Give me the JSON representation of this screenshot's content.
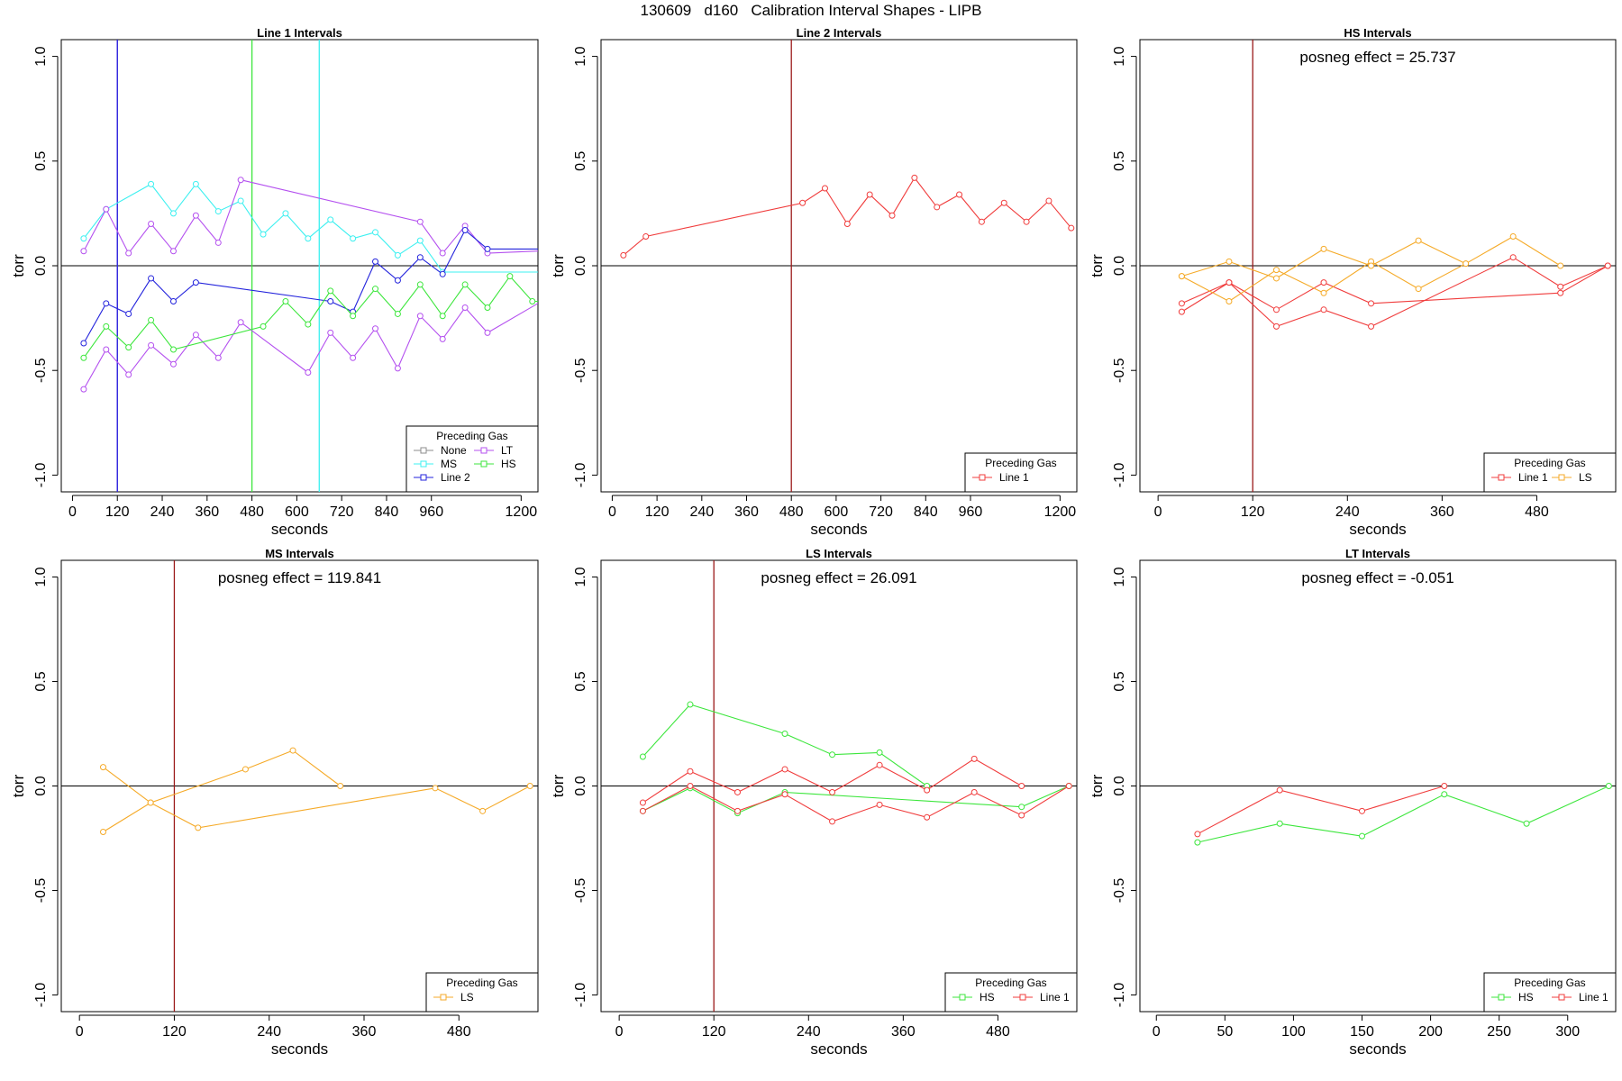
{
  "main_title": "130609   d160   Calibration Interval Shapes - LIPB",
  "colors": {
    "None": "#8c8c8c",
    "MS": "#3cf0f0",
    "Line 2": "#2323dc",
    "LT": "#b450ef",
    "HS": "#3ce63c",
    "Line 1": "#f03c3c",
    "LS": "#f5aa28",
    "zero": "#000000",
    "cal": "#9b1a1a"
  },
  "chart_data": [
    {
      "type": "line",
      "title": "Line 1 Intervals",
      "xlabel": "seconds",
      "ylabel": "torr",
      "xlim": [
        -30,
        1245
      ],
      "ylim": [
        -1.08,
        1.08
      ],
      "xticks": [
        0,
        120,
        240,
        360,
        480,
        600,
        720,
        840,
        960,
        1200
      ],
      "yticks": [
        -1.0,
        -0.5,
        0.0,
        0.5,
        1.0
      ],
      "vlines": [
        {
          "x": 120,
          "color": "#b450ef"
        },
        {
          "x": 120,
          "color": "#2323dc"
        },
        {
          "x": 480,
          "color": "#3ce63c"
        },
        {
          "x": 660,
          "color": "#3cf0f0"
        }
      ],
      "posneg": "",
      "legend": {
        "title": "Preceding Gas",
        "position": "bottom-right",
        "ncol": 2,
        "entries": [
          "None",
          "MS",
          "Line 2",
          "LT",
          "HS"
        ]
      },
      "series": [
        {
          "name": "MS",
          "points": [
            [
              30,
              0.13
            ],
            [
              90,
              0.27
            ],
            [
              210,
              0.39
            ],
            [
              270,
              0.25
            ],
            [
              330,
              0.39
            ],
            [
              390,
              0.26
            ],
            [
              450,
              0.31
            ],
            [
              510,
              0.15
            ],
            [
              570,
              0.25
            ],
            [
              630,
              0.13
            ],
            [
              690,
              0.22
            ],
            [
              750,
              0.13
            ],
            [
              810,
              0.16
            ],
            [
              870,
              0.05
            ],
            [
              930,
              0.12
            ],
            [
              990,
              -0.03
            ],
            [
              1245,
              -0.03
            ]
          ]
        },
        {
          "name": "LT",
          "points": [
            [
              30,
              0.07
            ],
            [
              90,
              0.27
            ],
            [
              150,
              0.06
            ],
            [
              210,
              0.2
            ],
            [
              270,
              0.07
            ],
            [
              330,
              0.24
            ],
            [
              390,
              0.11
            ],
            [
              450,
              0.41
            ],
            [
              930,
              0.21
            ],
            [
              990,
              0.06
            ],
            [
              1050,
              0.19
            ],
            [
              1110,
              0.06
            ],
            [
              1245,
              0.07
            ]
          ]
        },
        {
          "name": "LT",
          "points": [
            [
              30,
              -0.59
            ],
            [
              90,
              -0.4
            ],
            [
              150,
              -0.52
            ],
            [
              210,
              -0.38
            ],
            [
              270,
              -0.47
            ],
            [
              330,
              -0.33
            ],
            [
              390,
              -0.44
            ],
            [
              450,
              -0.27
            ],
            [
              630,
              -0.51
            ],
            [
              690,
              -0.32
            ],
            [
              750,
              -0.44
            ],
            [
              810,
              -0.3
            ],
            [
              870,
              -0.49
            ],
            [
              930,
              -0.24
            ],
            [
              990,
              -0.35
            ],
            [
              1050,
              -0.2
            ],
            [
              1110,
              -0.32
            ],
            [
              1245,
              -0.18
            ]
          ]
        },
        {
          "name": "Line 2",
          "points": [
            [
              30,
              -0.37
            ],
            [
              90,
              -0.18
            ],
            [
              150,
              -0.23
            ],
            [
              210,
              -0.06
            ],
            [
              270,
              -0.17
            ],
            [
              330,
              -0.08
            ],
            [
              690,
              -0.17
            ],
            [
              750,
              -0.22
            ],
            [
              810,
              0.02
            ],
            [
              870,
              -0.07
            ],
            [
              930,
              0.04
            ],
            [
              990,
              -0.04
            ],
            [
              1050,
              0.17
            ],
            [
              1110,
              0.08
            ],
            [
              1245,
              0.08
            ]
          ]
        },
        {
          "name": "HS",
          "points": [
            [
              30,
              -0.44
            ],
            [
              90,
              -0.29
            ],
            [
              150,
              -0.39
            ],
            [
              210,
              -0.26
            ],
            [
              270,
              -0.4
            ],
            [
              510,
              -0.29
            ],
            [
              570,
              -0.17
            ],
            [
              630,
              -0.28
            ],
            [
              690,
              -0.12
            ],
            [
              750,
              -0.24
            ],
            [
              810,
              -0.11
            ],
            [
              870,
              -0.23
            ],
            [
              930,
              -0.09
            ],
            [
              990,
              -0.24
            ],
            [
              1050,
              -0.09
            ],
            [
              1110,
              -0.2
            ],
            [
              1170,
              -0.05
            ],
            [
              1230,
              -0.17
            ],
            [
              1245,
              -0.17
            ]
          ]
        }
      ]
    },
    {
      "type": "line",
      "title": "Line 2 Intervals",
      "xlabel": "seconds",
      "ylabel": "torr",
      "xlim": [
        -30,
        1245
      ],
      "ylim": [
        -1.08,
        1.08
      ],
      "xticks": [
        0,
        120,
        240,
        360,
        480,
        600,
        720,
        840,
        960,
        1200
      ],
      "yticks": [
        -1.0,
        -0.5,
        0.0,
        0.5,
        1.0
      ],
      "vlines": [
        {
          "x": 480,
          "color": "#9b1a1a"
        }
      ],
      "posneg": "",
      "legend": {
        "title": "Preceding Gas",
        "position": "bottom-right",
        "ncol": 1,
        "entries": [
          "Line 1"
        ]
      },
      "series": [
        {
          "name": "Line 1",
          "points": [
            [
              30,
              0.05
            ],
            [
              90,
              0.14
            ],
            [
              510,
              0.3
            ],
            [
              570,
              0.37
            ],
            [
              630,
              0.2
            ],
            [
              690,
              0.34
            ],
            [
              750,
              0.24
            ],
            [
              810,
              0.42
            ],
            [
              870,
              0.28
            ],
            [
              930,
              0.34
            ],
            [
              990,
              0.21
            ],
            [
              1050,
              0.3
            ],
            [
              1110,
              0.21
            ],
            [
              1170,
              0.31
            ],
            [
              1230,
              0.18
            ]
          ]
        }
      ]
    },
    {
      "type": "line",
      "title": "HS Intervals",
      "xlabel": "seconds",
      "ylabel": "torr",
      "xlim": [
        -23,
        580
      ],
      "ylim": [
        -1.08,
        1.08
      ],
      "xticks": [
        0,
        120,
        240,
        360,
        480
      ],
      "yticks": [
        -1.0,
        -0.5,
        0.0,
        0.5,
        1.0
      ],
      "vlines": [
        {
          "x": 120,
          "color": "#9b1a1a"
        }
      ],
      "posneg": "posneg effect = 25.737",
      "legend": {
        "title": "Preceding Gas",
        "position": "bottom-right",
        "ncol": 2,
        "entries": [
          "Line 1",
          "LS"
        ]
      },
      "series": [
        {
          "name": "Line 1",
          "points": [
            [
              30,
              -0.18
            ],
            [
              90,
              -0.08
            ],
            [
              150,
              -0.21
            ],
            [
              210,
              -0.08
            ],
            [
              270,
              -0.18
            ],
            [
              510,
              -0.13
            ],
            [
              570,
              0.0
            ]
          ]
        },
        {
          "name": "Line 1",
          "points": [
            [
              30,
              -0.22
            ],
            [
              90,
              -0.08
            ],
            [
              150,
              -0.29
            ],
            [
              210,
              -0.21
            ],
            [
              270,
              -0.29
            ],
            [
              450,
              0.04
            ],
            [
              510,
              -0.1
            ],
            [
              570,
              0.0
            ]
          ]
        },
        {
          "name": "LS",
          "points": [
            [
              30,
              -0.05
            ],
            [
              90,
              -0.17
            ],
            [
              150,
              -0.02
            ],
            [
              210,
              -0.13
            ],
            [
              270,
              0.02
            ],
            [
              330,
              -0.11
            ],
            [
              390,
              0.01
            ],
            [
              450,
              0.14
            ],
            [
              510,
              0.0
            ]
          ]
        },
        {
          "name": "LS",
          "points": [
            [
              30,
              -0.05
            ],
            [
              90,
              0.02
            ],
            [
              150,
              -0.06
            ],
            [
              210,
              0.08
            ],
            [
              270,
              0.0
            ],
            [
              330,
              0.12
            ],
            [
              390,
              0.01
            ]
          ]
        }
      ]
    },
    {
      "type": "line",
      "title": "MS Intervals",
      "xlabel": "seconds",
      "ylabel": "torr",
      "xlim": [
        -23,
        580
      ],
      "ylim": [
        -1.08,
        1.08
      ],
      "xticks": [
        0,
        120,
        240,
        360,
        480
      ],
      "yticks": [
        -1.0,
        -0.5,
        0.0,
        0.5,
        1.0
      ],
      "vlines": [
        {
          "x": 120,
          "color": "#9b1a1a"
        }
      ],
      "posneg": "posneg effect = 119.841",
      "legend": {
        "title": "Preceding Gas",
        "position": "bottom-right",
        "ncol": 1,
        "entries": [
          "LS"
        ]
      },
      "series": [
        {
          "name": "LS",
          "points": [
            [
              30,
              0.09
            ],
            [
              90,
              -0.08
            ],
            [
              210,
              0.08
            ],
            [
              270,
              0.17
            ],
            [
              330,
              0.0
            ]
          ]
        },
        {
          "name": "LS",
          "points": [
            [
              30,
              -0.22
            ],
            [
              90,
              -0.08
            ],
            [
              150,
              -0.2
            ],
            [
              450,
              -0.01
            ],
            [
              510,
              -0.12
            ],
            [
              570,
              0.0
            ]
          ]
        }
      ]
    },
    {
      "type": "line",
      "title": "LS Intervals",
      "xlabel": "seconds",
      "ylabel": "torr",
      "xlim": [
        -23,
        580
      ],
      "ylim": [
        -1.08,
        1.08
      ],
      "xticks": [
        0,
        120,
        240,
        360,
        480
      ],
      "yticks": [
        -1.0,
        -0.5,
        0.0,
        0.5,
        1.0
      ],
      "vlines": [
        {
          "x": 120,
          "color": "#9b1a1a"
        }
      ],
      "posneg": "posneg effect = 26.091",
      "legend": {
        "title": "Preceding Gas",
        "position": "bottom-right",
        "ncol": 2,
        "entries": [
          "HS",
          "Line 1"
        ]
      },
      "series": [
        {
          "name": "HS",
          "points": [
            [
              30,
              0.14
            ],
            [
              90,
              0.39
            ],
            [
              210,
              0.25
            ],
            [
              270,
              0.15
            ],
            [
              330,
              0.16
            ],
            [
              390,
              0.0
            ]
          ]
        },
        {
          "name": "HS",
          "points": [
            [
              30,
              -0.12
            ],
            [
              90,
              -0.01
            ],
            [
              150,
              -0.13
            ],
            [
              210,
              -0.03
            ],
            [
              510,
              -0.1
            ],
            [
              570,
              0.0
            ]
          ]
        },
        {
          "name": "Line 1",
          "points": [
            [
              30,
              -0.08
            ],
            [
              90,
              0.07
            ],
            [
              150,
              -0.03
            ],
            [
              210,
              0.08
            ],
            [
              270,
              -0.03
            ],
            [
              330,
              0.1
            ],
            [
              390,
              -0.02
            ],
            [
              450,
              0.13
            ],
            [
              510,
              0.0
            ]
          ]
        },
        {
          "name": "Line 1",
          "points": [
            [
              30,
              -0.12
            ],
            [
              90,
              0.0
            ],
            [
              150,
              -0.12
            ],
            [
              210,
              -0.04
            ],
            [
              270,
              -0.17
            ],
            [
              330,
              -0.09
            ],
            [
              390,
              -0.15
            ],
            [
              450,
              -0.03
            ],
            [
              510,
              -0.14
            ],
            [
              570,
              0.0
            ]
          ]
        }
      ]
    },
    {
      "type": "line",
      "title": "LT Intervals",
      "xlabel": "seconds",
      "ylabel": "torr",
      "xlim": [
        -12,
        335
      ],
      "ylim": [
        -1.08,
        1.08
      ],
      "xticks": [
        0,
        50,
        100,
        150,
        200,
        250,
        300
      ],
      "yticks": [
        -1.0,
        -0.5,
        0.0,
        0.5,
        1.0
      ],
      "vlines": [],
      "posneg": "posneg effect = -0.051",
      "legend": {
        "title": "Preceding Gas",
        "position": "bottom-right",
        "ncol": 2,
        "entries": [
          "HS",
          "Line 1"
        ]
      },
      "series": [
        {
          "name": "HS",
          "points": [
            [
              30,
              -0.27
            ],
            [
              90,
              -0.18
            ],
            [
              150,
              -0.24
            ],
            [
              210,
              -0.04
            ],
            [
              270,
              -0.18
            ],
            [
              330,
              0.0
            ]
          ]
        },
        {
          "name": "Line 1",
          "points": [
            [
              30,
              -0.23
            ],
            [
              90,
              -0.02
            ],
            [
              150,
              -0.12
            ],
            [
              210,
              0.0
            ]
          ]
        }
      ]
    }
  ]
}
